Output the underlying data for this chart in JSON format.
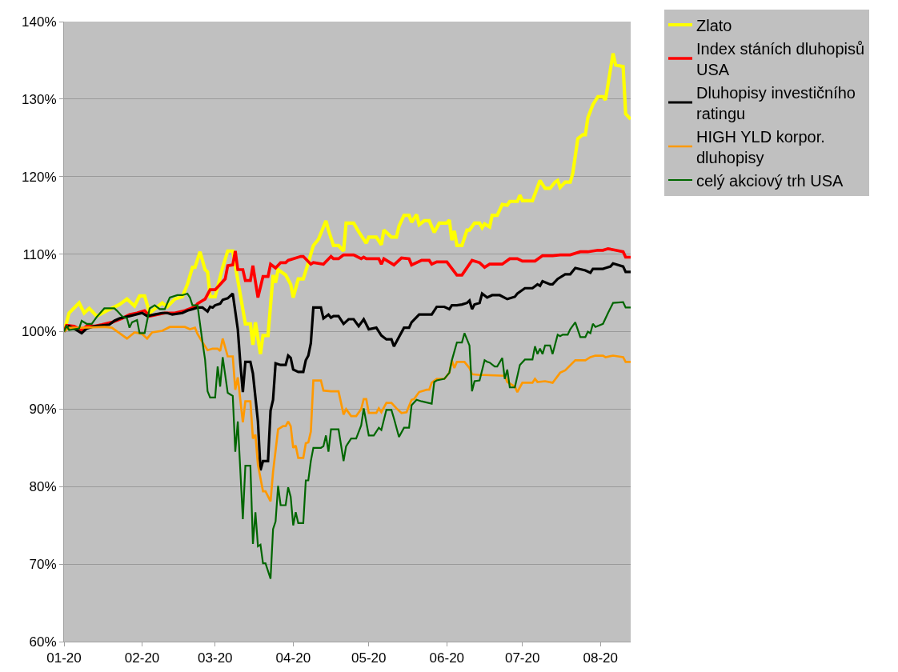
{
  "chart_data": {
    "type": "line",
    "xlim": [
      "2020-01-01",
      "2020-08-13"
    ],
    "ylim": [
      60,
      140
    ],
    "xticks": [
      {
        "value": "2020-01-01",
        "label": "01-20"
      },
      {
        "value": "2020-02-01",
        "label": "02-20"
      },
      {
        "value": "2020-03-01",
        "label": "03-20"
      },
      {
        "value": "2020-04-01",
        "label": "04-20"
      },
      {
        "value": "2020-05-01",
        "label": "05-20"
      },
      {
        "value": "2020-06-01",
        "label": "06-20"
      },
      {
        "value": "2020-07-01",
        "label": "07-20"
      },
      {
        "value": "2020-08-01",
        "label": "08-20"
      }
    ],
    "yticks": [
      {
        "value": 60,
        "label": "60%"
      },
      {
        "value": 70,
        "label": "70%"
      },
      {
        "value": 80,
        "label": "80%"
      },
      {
        "value": 90,
        "label": "90%"
      },
      {
        "value": 100,
        "label": "100%"
      },
      {
        "value": 110,
        "label": "110%"
      },
      {
        "value": 120,
        "label": "120%"
      },
      {
        "value": 130,
        "label": "130%"
      },
      {
        "value": 140,
        "label": "140%"
      }
    ],
    "grid": "y",
    "legend": "right",
    "marker": "none",
    "line_style": "solid",
    "series": [
      {
        "name": "Zlato",
        "color": "#ffff00",
        "x": [
          "2020-01-01",
          "2020-01-03",
          "2020-01-07",
          "2020-01-09",
          "2020-01-11",
          "2020-01-14",
          "2020-01-18",
          "2020-01-23",
          "2020-01-26",
          "2020-01-29",
          "2020-01-31",
          "2020-02-02",
          "2020-02-04",
          "2020-02-09",
          "2020-02-11",
          "2020-02-14",
          "2020-02-17",
          "2020-02-19",
          "2020-02-21",
          "2020-02-22",
          "2020-02-24",
          "2020-02-26",
          "2020-02-27",
          "2020-02-28",
          "2020-03-01",
          "2020-03-04",
          "2020-03-06",
          "2020-03-08",
          "2020-03-13",
          "2020-03-15",
          "2020-03-16",
          "2020-03-17",
          "2020-03-19",
          "2020-03-20",
          "2020-03-22",
          "2020-03-24",
          "2020-03-25",
          "2020-03-26",
          "2020-03-29",
          "2020-03-31",
          "2020-04-01",
          "2020-04-03",
          "2020-04-05",
          "2020-04-07",
          "2020-04-09",
          "2020-04-11",
          "2020-04-14",
          "2020-04-15",
          "2020-04-17",
          "2020-04-19",
          "2020-04-21",
          "2020-04-22",
          "2020-04-25",
          "2020-04-27",
          "2020-04-30",
          "2020-05-01",
          "2020-05-04",
          "2020-05-06",
          "2020-05-07",
          "2020-05-10",
          "2020-05-12",
          "2020-05-13",
          "2020-05-15",
          "2020-05-17",
          "2020-05-18",
          "2020-05-20",
          "2020-05-21",
          "2020-05-23",
          "2020-05-25",
          "2020-05-27",
          "2020-05-29",
          "2020-06-01",
          "2020-06-02",
          "2020-06-03",
          "2020-06-04",
          "2020-06-05",
          "2020-06-07",
          "2020-06-09",
          "2020-06-10",
          "2020-06-12",
          "2020-06-14",
          "2020-06-15",
          "2020-06-16",
          "2020-06-18",
          "2020-06-19",
          "2020-06-21",
          "2020-06-23",
          "2020-06-25",
          "2020-06-26",
          "2020-06-29",
          "2020-06-30",
          "2020-07-01",
          "2020-07-02",
          "2020-07-05",
          "2020-07-08",
          "2020-07-10",
          "2020-07-12",
          "2020-07-14",
          "2020-07-15",
          "2020-07-16",
          "2020-07-18",
          "2020-07-20",
          "2020-07-21",
          "2020-07-23",
          "2020-07-25",
          "2020-07-26",
          "2020-07-27",
          "2020-07-29",
          "2020-07-31",
          "2020-08-02",
          "2020-08-03",
          "2020-08-06",
          "2020-08-07",
          "2020-08-10",
          "2020-08-11",
          "2020-08-13"
        ],
        "values": [
          100,
          102.4,
          103.7,
          102.4,
          103,
          102,
          102.7,
          103.5,
          104.2,
          103.3,
          104.6,
          104.6,
          102.4,
          103.7,
          103.2,
          104.2,
          104.5,
          106.1,
          108.3,
          108.3,
          110.3,
          108,
          107.7,
          104.5,
          104.5,
          108.3,
          110.4,
          110.4,
          101,
          101,
          98.3,
          101.2,
          97.1,
          99.5,
          99.5,
          107.3,
          106.3,
          108,
          107.3,
          106.1,
          104.4,
          106.8,
          106.8,
          108.9,
          111.1,
          111.9,
          114.3,
          113.1,
          111.1,
          111.1,
          110.4,
          114,
          114,
          112.9,
          111.4,
          112.2,
          112.2,
          111.2,
          113.1,
          112.2,
          112.2,
          113.6,
          115,
          115,
          114.1,
          115.1,
          113.8,
          114.3,
          114.3,
          112.8,
          114,
          114,
          114.4,
          111.8,
          113,
          111.1,
          111.1,
          113.1,
          113.1,
          114,
          114,
          113.4,
          113.9,
          113.5,
          115,
          115,
          116.4,
          116.3,
          116.8,
          116.8,
          117.6,
          116.9,
          116.9,
          116.9,
          119.5,
          118.5,
          118.5,
          119.3,
          119.5,
          118.6,
          119.3,
          119.3,
          120.4,
          124.9,
          125.4,
          125.4,
          127.6,
          129.3,
          130.3,
          130.3,
          129.9,
          135.9,
          134.4,
          134.2,
          128.1,
          127.4
        ]
      },
      {
        "name": "Index stáních dluhopisů USA",
        "color": "#ff0000",
        "x": [
          "2020-01-01",
          "2020-01-02",
          "2020-01-05",
          "2020-01-08",
          "2020-01-10",
          "2020-01-13",
          "2020-01-16",
          "2020-01-20",
          "2020-01-24",
          "2020-01-27",
          "2020-01-30",
          "2020-02-02",
          "2020-02-04",
          "2020-02-07",
          "2020-02-10",
          "2020-02-14",
          "2020-02-18",
          "2020-02-22",
          "2020-02-23",
          "2020-02-26",
          "2020-02-28",
          "2020-03-01",
          "2020-03-03",
          "2020-03-05",
          "2020-03-06",
          "2020-03-08",
          "2020-03-09",
          "2020-03-10",
          "2020-03-12",
          "2020-03-13",
          "2020-03-15",
          "2020-03-16",
          "2020-03-18",
          "2020-03-20",
          "2020-03-22",
          "2020-03-23",
          "2020-03-25",
          "2020-03-27",
          "2020-03-29",
          "2020-03-30",
          "2020-04-01",
          "2020-04-04",
          "2020-04-05",
          "2020-04-08",
          "2020-04-09",
          "2020-04-13",
          "2020-04-16",
          "2020-04-17",
          "2020-04-19",
          "2020-04-21",
          "2020-04-25",
          "2020-04-28",
          "2020-04-29",
          "2020-04-30",
          "2020-05-05",
          "2020-05-06",
          "2020-05-07",
          "2020-05-11",
          "2020-05-14",
          "2020-05-17",
          "2020-05-18",
          "2020-05-22",
          "2020-05-25",
          "2020-05-26",
          "2020-05-28",
          "2020-06-01",
          "2020-06-05",
          "2020-06-07",
          "2020-06-11",
          "2020-06-14",
          "2020-06-16",
          "2020-06-18",
          "2020-06-23",
          "2020-06-26",
          "2020-06-29",
          "2020-07-01",
          "2020-07-06",
          "2020-07-09",
          "2020-07-13",
          "2020-07-16",
          "2020-07-20",
          "2020-07-24",
          "2020-07-27",
          "2020-07-31",
          "2020-08-02",
          "2020-08-04",
          "2020-08-07",
          "2020-08-10",
          "2020-08-11",
          "2020-08-13"
        ],
        "values": [
          100,
          100.8,
          100.7,
          100.2,
          100.7,
          100.7,
          100.9,
          101.2,
          101.7,
          102.2,
          102.4,
          102.7,
          102,
          102.2,
          102.4,
          102.4,
          102.7,
          103.2,
          103.6,
          104.2,
          105.4,
          105.4,
          106.1,
          106.8,
          108.5,
          108.6,
          110.4,
          108,
          108,
          106.6,
          106.6,
          108.5,
          104.4,
          107.1,
          107.1,
          108.7,
          108.2,
          108.9,
          108.9,
          109.2,
          109.4,
          109.7,
          109.7,
          108.7,
          108.9,
          108.7,
          109.7,
          109.4,
          109.4,
          109.9,
          109.9,
          109.4,
          109.6,
          109.4,
          109.4,
          108.7,
          109.4,
          108.6,
          109.5,
          109.4,
          108.6,
          109.2,
          109.2,
          108.7,
          109,
          109,
          107.3,
          107.3,
          109.2,
          108.9,
          108.3,
          108.7,
          108.7,
          109.4,
          109.4,
          109.1,
          109.1,
          109.8,
          109.8,
          109.9,
          109.9,
          110.3,
          110.3,
          110.5,
          110.5,
          110.7,
          110.5,
          110.3,
          109.6,
          109.6
        ]
      },
      {
        "name": "Dluhopisy investičního ratingu",
        "color": "#000000",
        "x": [
          "2020-01-01",
          "2020-01-03",
          "2020-01-06",
          "2020-01-08",
          "2020-01-10",
          "2020-01-13",
          "2020-01-19",
          "2020-01-21",
          "2020-01-23",
          "2020-01-27",
          "2020-02-01",
          "2020-02-03",
          "2020-02-06",
          "2020-02-09",
          "2020-02-11",
          "2020-02-13",
          "2020-02-17",
          "2020-02-19",
          "2020-02-21",
          "2020-02-23",
          "2020-02-25",
          "2020-02-27",
          "2020-02-28",
          "2020-02-29",
          "2020-03-01",
          "2020-03-03",
          "2020-03-04",
          "2020-03-06",
          "2020-03-08",
          "2020-03-10",
          "2020-03-11",
          "2020-03-12",
          "2020-03-13",
          "2020-03-15",
          "2020-03-16",
          "2020-03-18",
          "2020-03-19",
          "2020-03-20",
          "2020-03-22",
          "2020-03-23",
          "2020-03-24",
          "2020-03-25",
          "2020-03-27",
          "2020-03-29",
          "2020-03-30",
          "2020-03-31",
          "2020-04-01",
          "2020-04-03",
          "2020-04-05",
          "2020-04-06",
          "2020-04-07",
          "2020-04-08",
          "2020-04-09",
          "2020-04-12",
          "2020-04-13",
          "2020-04-15",
          "2020-04-16",
          "2020-04-17",
          "2020-04-19",
          "2020-04-21",
          "2020-04-23",
          "2020-04-25",
          "2020-04-27",
          "2020-04-29",
          "2020-05-01",
          "2020-05-04",
          "2020-05-06",
          "2020-05-08",
          "2020-05-10",
          "2020-05-11",
          "2020-05-13",
          "2020-05-15",
          "2020-05-17",
          "2020-05-18",
          "2020-05-21",
          "2020-05-26",
          "2020-05-28",
          "2020-05-31",
          "2020-06-02",
          "2020-06-03",
          "2020-06-05",
          "2020-06-07",
          "2020-06-09",
          "2020-06-10",
          "2020-06-11",
          "2020-06-12",
          "2020-06-14",
          "2020-06-15",
          "2020-06-17",
          "2020-06-19",
          "2020-06-22",
          "2020-06-25",
          "2020-06-28",
          "2020-06-29",
          "2020-07-02",
          "2020-07-05",
          "2020-07-07",
          "2020-07-08",
          "2020-07-09",
          "2020-07-12",
          "2020-07-13",
          "2020-07-15",
          "2020-07-18",
          "2020-07-20",
          "2020-07-22",
          "2020-07-26",
          "2020-07-28",
          "2020-07-29",
          "2020-08-02",
          "2020-08-03",
          "2020-08-05",
          "2020-08-06",
          "2020-08-10",
          "2020-08-11",
          "2020-08-13"
        ],
        "values": [
          100,
          100.7,
          100.2,
          99.8,
          100.4,
          100.7,
          100.9,
          101.4,
          101.7,
          102,
          102.4,
          102,
          102.2,
          102.4,
          102.4,
          102.2,
          102.4,
          102.7,
          102.9,
          103.1,
          103.1,
          102.6,
          103.2,
          103.1,
          103.4,
          103.6,
          104.1,
          104.3,
          104.9,
          100.3,
          95.9,
          92.2,
          96.1,
          96.1,
          94.6,
          88.4,
          82.1,
          83.3,
          83.3,
          89.8,
          91.2,
          95.9,
          95.7,
          95.7,
          96.9,
          96.6,
          95.1,
          94.8,
          94.8,
          96.3,
          96.9,
          98.5,
          103.1,
          103.1,
          101.7,
          102.2,
          101.8,
          102,
          102,
          101,
          101.6,
          101.6,
          100.7,
          101.6,
          100.3,
          100.5,
          99.5,
          99,
          99,
          98.1,
          99.3,
          100.5,
          100.5,
          101.2,
          102.2,
          102.2,
          103.2,
          103.2,
          102.9,
          103.4,
          103.4,
          103.5,
          103.7,
          104,
          102.9,
          103.5,
          103.7,
          104.9,
          104.4,
          104.7,
          104.7,
          104.2,
          104.5,
          104.9,
          105.6,
          105.6,
          106.1,
          105.9,
          106.5,
          106.1,
          106.1,
          106.8,
          107.4,
          107.4,
          108.2,
          107.9,
          107.6,
          108.1,
          108.1,
          108.2,
          108.4,
          108.8,
          108.4,
          107.7,
          107.7
        ]
      },
      {
        "name": "HIGH YLD korpor. dluhopisy",
        "color": "#ff9900",
        "x": [
          "2020-01-01",
          "2020-01-03",
          "2020-01-08",
          "2020-01-17",
          "2020-01-20",
          "2020-01-23",
          "2020-01-26",
          "2020-01-29",
          "2020-02-01",
          "2020-02-03",
          "2020-02-05",
          "2020-02-09",
          "2020-02-12",
          "2020-02-18",
          "2020-02-20",
          "2020-02-22",
          "2020-02-23",
          "2020-02-25",
          "2020-02-27",
          "2020-02-29",
          "2020-03-02",
          "2020-03-03",
          "2020-03-04",
          "2020-03-06",
          "2020-03-08",
          "2020-03-09",
          "2020-03-10",
          "2020-03-12",
          "2020-03-13",
          "2020-03-15",
          "2020-03-16",
          "2020-03-17",
          "2020-03-18",
          "2020-03-20",
          "2020-03-21",
          "2020-03-23",
          "2020-03-24",
          "2020-03-26",
          "2020-03-28",
          "2020-03-29",
          "2020-03-30",
          "2020-03-31",
          "2020-04-01",
          "2020-04-02",
          "2020-04-03",
          "2020-04-05",
          "2020-04-06",
          "2020-04-07",
          "2020-04-08",
          "2020-04-09",
          "2020-04-12",
          "2020-04-13",
          "2020-04-16",
          "2020-04-19",
          "2020-04-21",
          "2020-04-22",
          "2020-04-24",
          "2020-04-26",
          "2020-04-28",
          "2020-04-29",
          "2020-04-30",
          "2020-05-01",
          "2020-05-04",
          "2020-05-05",
          "2020-05-06",
          "2020-05-08",
          "2020-05-10",
          "2020-05-12",
          "2020-05-14",
          "2020-05-16",
          "2020-05-18",
          "2020-05-19",
          "2020-05-21",
          "2020-05-24",
          "2020-05-25",
          "2020-05-26",
          "2020-05-28",
          "2020-05-31",
          "2020-06-02",
          "2020-06-03",
          "2020-06-04",
          "2020-06-05",
          "2020-06-08",
          "2020-06-10",
          "2020-06-11",
          "2020-06-14",
          "2020-06-16",
          "2020-06-24",
          "2020-06-25",
          "2020-06-28",
          "2020-06-29",
          "2020-07-01",
          "2020-07-05",
          "2020-07-06",
          "2020-07-07",
          "2020-07-10",
          "2020-07-13",
          "2020-07-16",
          "2020-07-18",
          "2020-07-22",
          "2020-07-26",
          "2020-07-28",
          "2020-07-30",
          "2020-08-02",
          "2020-08-03",
          "2020-08-06",
          "2020-08-08",
          "2020-08-10",
          "2020-08-11",
          "2020-08-13"
        ],
        "values": [
          100,
          100.5,
          100.5,
          100.6,
          100.5,
          99.8,
          99.1,
          99.9,
          99.7,
          99.1,
          99.9,
          100.1,
          100.6,
          100.6,
          100.3,
          100.5,
          99.7,
          98.6,
          97.6,
          97.8,
          97.8,
          97.5,
          99.1,
          96.8,
          96.8,
          92.5,
          94.1,
          88.3,
          91,
          91,
          86.2,
          86.7,
          82.8,
          79.4,
          79.4,
          78.1,
          81.9,
          87.4,
          87.8,
          87.8,
          88.4,
          87.8,
          85,
          85.3,
          83.7,
          83.7,
          85.6,
          85.7,
          87.1,
          93.7,
          93.7,
          92.4,
          92.3,
          92.3,
          89.3,
          90,
          89.1,
          89.1,
          90,
          91.3,
          91.3,
          89.5,
          89.5,
          90.1,
          89.6,
          90.8,
          90.8,
          90.1,
          89.5,
          89.6,
          91.2,
          91.3,
          92.2,
          92.5,
          92.5,
          93.4,
          93.9,
          93.9,
          94.7,
          96.3,
          95.3,
          96.1,
          96.1,
          95.3,
          94.5,
          94.4,
          94.4,
          94.3,
          93.5,
          92.9,
          92.2,
          93.4,
          93.4,
          93.9,
          93.5,
          93.6,
          93.4,
          94.7,
          95,
          96.3,
          96.3,
          96.7,
          96.9,
          96.9,
          96.7,
          96.9,
          96.8,
          96.7,
          96.1,
          96.1
        ]
      },
      {
        "name": "celý akciový trh USA",
        "color": "#006600",
        "x": [
          "2020-01-01",
          "2020-01-02",
          "2020-01-03",
          "2020-01-07",
          "2020-01-08",
          "2020-01-10",
          "2020-01-12",
          "2020-01-14",
          "2020-01-17",
          "2020-01-21",
          "2020-01-22",
          "2020-01-24",
          "2020-01-26",
          "2020-01-27",
          "2020-01-28",
          "2020-01-30",
          "2020-01-31",
          "2020-02-02",
          "2020-02-04",
          "2020-02-06",
          "2020-02-08",
          "2020-02-10",
          "2020-02-12",
          "2020-02-15",
          "2020-02-17",
          "2020-02-19",
          "2020-02-20",
          "2020-02-21",
          "2020-02-23",
          "2020-02-25",
          "2020-02-26",
          "2020-02-27",
          "2020-02-28",
          "2020-03-01",
          "2020-03-02",
          "2020-03-03",
          "2020-03-04",
          "2020-03-06",
          "2020-03-07",
          "2020-03-08",
          "2020-03-09",
          "2020-03-10",
          "2020-03-12",
          "2020-03-13",
          "2020-03-15",
          "2020-03-16",
          "2020-03-17",
          "2020-03-18",
          "2020-03-19",
          "2020-03-20",
          "2020-03-21",
          "2020-03-23",
          "2020-03-24",
          "2020-03-25",
          "2020-03-26",
          "2020-03-27",
          "2020-03-29",
          "2020-03-30",
          "2020-03-31",
          "2020-04-01",
          "2020-04-02",
          "2020-04-03",
          "2020-04-05",
          "2020-04-06",
          "2020-04-07",
          "2020-04-08",
          "2020-04-09",
          "2020-04-12",
          "2020-04-13",
          "2020-04-14",
          "2020-04-15",
          "2020-04-16",
          "2020-04-19",
          "2020-04-21",
          "2020-04-22",
          "2020-04-24",
          "2020-04-26",
          "2020-04-28",
          "2020-04-29",
          "2020-05-01",
          "2020-05-03",
          "2020-05-05",
          "2020-05-06",
          "2020-05-08",
          "2020-05-10",
          "2020-05-11",
          "2020-05-13",
          "2020-05-15",
          "2020-05-17",
          "2020-05-18",
          "2020-05-20",
          "2020-05-22",
          "2020-05-26",
          "2020-05-27",
          "2020-05-28",
          "2020-05-31",
          "2020-06-02",
          "2020-06-03",
          "2020-06-05",
          "2020-06-07",
          "2020-06-08",
          "2020-06-10",
          "2020-06-11",
          "2020-06-12",
          "2020-06-14",
          "2020-06-16",
          "2020-06-17",
          "2020-06-18",
          "2020-06-20",
          "2020-06-21",
          "2020-06-23",
          "2020-06-24",
          "2020-06-25",
          "2020-06-26",
          "2020-06-28",
          "2020-06-30",
          "2020-07-02",
          "2020-07-05",
          "2020-07-06",
          "2020-07-07",
          "2020-07-08",
          "2020-07-09",
          "2020-07-10",
          "2020-07-12",
          "2020-07-13",
          "2020-07-15",
          "2020-07-16",
          "2020-07-17",
          "2020-07-19",
          "2020-07-20",
          "2020-07-22",
          "2020-07-24",
          "2020-07-26",
          "2020-07-27",
          "2020-07-28",
          "2020-07-29",
          "2020-07-30",
          "2020-08-02",
          "2020-08-04",
          "2020-08-06",
          "2020-08-10",
          "2020-08-11",
          "2020-08-13"
        ],
        "values": [
          100,
          100.8,
          100.2,
          100.4,
          101.4,
          101,
          101,
          101.9,
          103,
          103,
          102.7,
          102,
          101.7,
          100.5,
          101.2,
          101.5,
          99.8,
          99.8,
          103,
          103.4,
          102.9,
          102.9,
          104.4,
          104.7,
          104.7,
          104.9,
          104.4,
          103.4,
          103.4,
          98.6,
          96.4,
          92.3,
          91.5,
          91.5,
          95.5,
          92.9,
          96.7,
          92.1,
          91.9,
          91.7,
          84.5,
          88.4,
          75.8,
          82.7,
          82.7,
          72.6,
          76.7,
          72.3,
          72.5,
          70.1,
          70.1,
          68.1,
          74.5,
          75.5,
          80.1,
          77.6,
          77.6,
          79.9,
          78.7,
          75,
          76.7,
          75.3,
          75.3,
          80.8,
          80.8,
          83.3,
          85,
          85,
          85.2,
          86.6,
          84.5,
          87.4,
          87.4,
          83.3,
          85.2,
          86.2,
          86.2,
          87.9,
          90.1,
          86.6,
          86.6,
          87.6,
          87.3,
          89.9,
          89.9,
          88.8,
          86.4,
          87.6,
          87.6,
          90.5,
          91.2,
          91,
          90.7,
          93.5,
          93.7,
          93.9,
          94.7,
          96.3,
          98.6,
          98.6,
          99.8,
          98.2,
          92.3,
          93.6,
          93.7,
          96.3,
          96.1,
          96,
          95.5,
          95.5,
          96.6,
          93.9,
          95.1,
          92.8,
          92.8,
          95.7,
          96.4,
          96.4,
          98.1,
          97.1,
          97.8,
          97.1,
          98.2,
          98.2,
          97.1,
          99.6,
          99.4,
          99.6,
          99.6,
          100.3,
          101.2,
          99.3,
          99.3,
          100,
          99.8,
          101,
          100.6,
          101,
          102.4,
          103.7,
          103.8,
          103.1,
          103.1
        ]
      }
    ]
  }
}
